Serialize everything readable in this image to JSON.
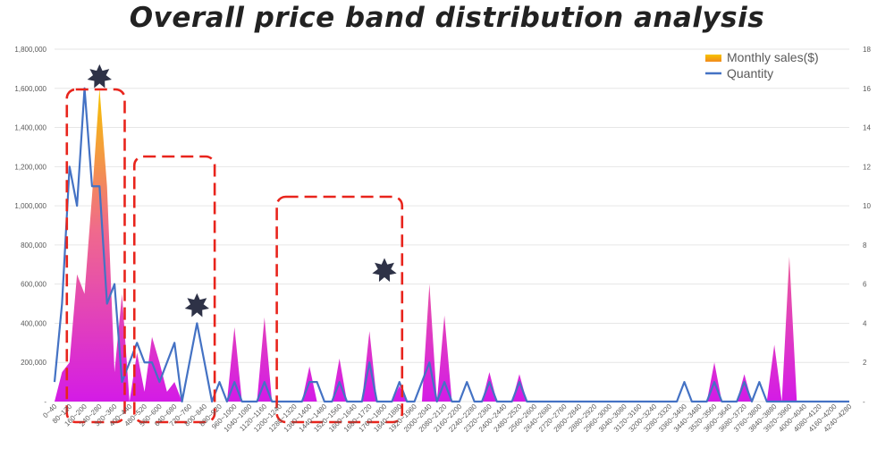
{
  "title": "Overall price band distribution analysis",
  "chart_data": {
    "type": "area",
    "title": "Overall price band distribution analysis",
    "categories": [
      "0~40",
      "40~80",
      "80~120",
      "120~160",
      "160~200",
      "200~240",
      "240~280",
      "280~320",
      "320~360",
      "360~400",
      "400~440",
      "440~480",
      "480~520",
      "520~560",
      "560~600",
      "600~640",
      "640~680",
      "680~720",
      "720~760",
      "760~800",
      "800~840",
      "840~880",
      "880~920",
      "920~960",
      "960~1000",
      "1000~1040",
      "1040~1080",
      "1080~1120",
      "1120~1160",
      "1160~1200",
      "1200~1240",
      "1240~1280",
      "1280~1320",
      "1320~1360",
      "1360~1400",
      "1400~1440",
      "1440~1480",
      "1480~1520",
      "1520~1560",
      "1560~1600",
      "1600~1640",
      "1640~1680",
      "1680~1720",
      "1720~1760",
      "1760~1800",
      "1800~1840",
      "1840~1880",
      "1880~1920",
      "1920~1960",
      "1960~2000",
      "2000~2040",
      "2040~2080",
      "2080~2120",
      "2120~2160",
      "2160~2200",
      "2200~2240",
      "2240~2280",
      "2280~2320",
      "2320~2360",
      "2360~2400",
      "2400~2440",
      "2440~2480",
      "2480~2520",
      "2520~2560",
      "2560~2600",
      "2600~2640",
      "2640~2680",
      "2680~2720",
      "2720~2760",
      "2760~2800",
      "2800~2840",
      "2840~2880",
      "2880~2920",
      "2920~2960",
      "2960~3000",
      "3000~3040",
      "3040~3080",
      "3080~3120",
      "3120~3160",
      "3160~3200",
      "3200~3240",
      "3240~3280",
      "3280~3320",
      "3320~3360",
      "3360~3400",
      "3400~3440",
      "3440~3480",
      "3480~3520",
      "3520~3560",
      "3560~3600",
      "3600~3640",
      "3640~3680",
      "3680~3720",
      "3720~3760",
      "3760~3800",
      "3800~3840",
      "3840~3880",
      "3880~3920",
      "3920~3960",
      "3960~4000",
      "4000~4040",
      "4040~4080",
      "4080~4120",
      "4120~4160",
      "4160~4200",
      "4200~4240",
      "4240~4280"
    ],
    "x_tick_labels": [
      "0~40",
      "80~120",
      "160~200",
      "240~280",
      "320~360",
      "400~440",
      "480~520",
      "560~600",
      "640~680",
      "720~760",
      "800~840",
      "880~920",
      "960~1000",
      "1040~1080",
      "1120~1160",
      "1200~1240",
      "1280~1320",
      "1360~1400",
      "1440~1480",
      "1520~1560",
      "1600~1640",
      "1680~1720",
      "1760~1800",
      "1840~1880",
      "1920~1960",
      "2000~2040",
      "2080~2120",
      "2160~2200",
      "2240~2280",
      "2320~2360",
      "2400~2440",
      "2480~2520",
      "2560~2600",
      "2640~2680",
      "2720~2760",
      "2800~2840",
      "2880~2920",
      "2960~3000",
      "3040~3080",
      "3120~3160",
      "3200~3240",
      "3280~3320",
      "3360~3400",
      "3440~3480",
      "3520~3560",
      "3600~3640",
      "3680~3720",
      "3760~3800",
      "3840~3880",
      "3920~3960",
      "4000~4040",
      "4080~4120",
      "4160~4200",
      "4240~4280"
    ],
    "series": [
      {
        "name": "Monthly sales($)",
        "axis": "left",
        "type": "area",
        "values": [
          0,
          150000,
          200000,
          650000,
          550000,
          1050000,
          1600000,
          1100000,
          150000,
          550000,
          0,
          250000,
          50000,
          330000,
          200000,
          50000,
          100000,
          0,
          0,
          0,
          0,
          0,
          0,
          0,
          380000,
          0,
          0,
          0,
          430000,
          0,
          0,
          0,
          0,
          0,
          180000,
          0,
          0,
          0,
          220000,
          0,
          0,
          0,
          360000,
          0,
          0,
          0,
          80000,
          0,
          0,
          0,
          600000,
          0,
          440000,
          0,
          0,
          0,
          0,
          0,
          150000,
          0,
          0,
          0,
          140000,
          0,
          0,
          0,
          0,
          0,
          0,
          0,
          0,
          0,
          0,
          0,
          0,
          0,
          0,
          0,
          0,
          0,
          0,
          0,
          0,
          0,
          0,
          0,
          0,
          0,
          200000,
          0,
          0,
          0,
          140000,
          0,
          0,
          0,
          290000,
          0,
          740000,
          0,
          0,
          0,
          0,
          0,
          0,
          0,
          0
        ]
      },
      {
        "name": "Quantity",
        "axis": "right",
        "type": "line",
        "values": [
          1,
          5,
          12,
          10,
          16,
          11,
          11,
          5,
          6,
          1,
          2,
          3,
          2,
          2,
          1,
          2,
          3,
          0,
          2,
          4,
          2,
          0,
          1,
          0,
          1,
          0,
          0,
          0,
          1,
          0,
          0,
          0,
          0,
          0,
          1,
          1,
          0,
          0,
          1,
          0,
          0,
          0,
          2,
          0,
          0,
          0,
          1,
          0,
          0,
          1,
          2,
          0,
          1,
          0,
          0,
          1,
          0,
          0,
          1,
          0,
          0,
          0,
          1,
          0,
          0,
          0,
          0,
          0,
          0,
          0,
          0,
          0,
          0,
          0,
          0,
          0,
          0,
          0,
          0,
          0,
          0,
          0,
          0,
          0,
          1,
          0,
          0,
          0,
          1,
          0,
          0,
          0,
          1,
          0,
          1,
          0,
          0,
          0,
          0,
          0,
          0,
          0,
          0,
          0,
          0,
          0,
          0
        ]
      }
    ],
    "y_left": {
      "min": 0,
      "max": 1800000,
      "ticks": [
        "-",
        "200,000",
        "400,000",
        "600,000",
        "800,000",
        "1,000,000",
        "1,200,000",
        "1,400,000",
        "1,600,000",
        "1,800,000"
      ]
    },
    "y_right": {
      "min": 0,
      "max": 18,
      "ticks": [
        "-",
        "2",
        "4",
        "6",
        "8",
        "10",
        "12",
        "14",
        "16",
        "18"
      ]
    },
    "grid": true,
    "legend": {
      "position": "top-right",
      "items": [
        {
          "label": "Monthly sales($)",
          "marker": "gradient-square"
        },
        {
          "label": "Quantity",
          "marker": "line"
        }
      ]
    },
    "annotations": [
      {
        "type": "dashed-box",
        "from": "80~120",
        "to": "360~400"
      },
      {
        "type": "dashed-box",
        "from": "440~480",
        "to": "840~880"
      },
      {
        "type": "dashed-box",
        "from": "1200~1240",
        "to": "1840~1880"
      },
      {
        "type": "star",
        "at": "240~280",
        "value": 1650000
      },
      {
        "type": "star",
        "at": "760~800",
        "value": 480000
      },
      {
        "type": "star",
        "at": "1760~1800",
        "value": 660000
      }
    ],
    "colors": {
      "area_top": "#f6c300",
      "area_mid": "#f06a8c",
      "area_bottom": "#d41be6",
      "line": "#4472c4",
      "annotation": "#e8241c",
      "star": "#2e3247",
      "grid": "#e6e6e6"
    }
  }
}
